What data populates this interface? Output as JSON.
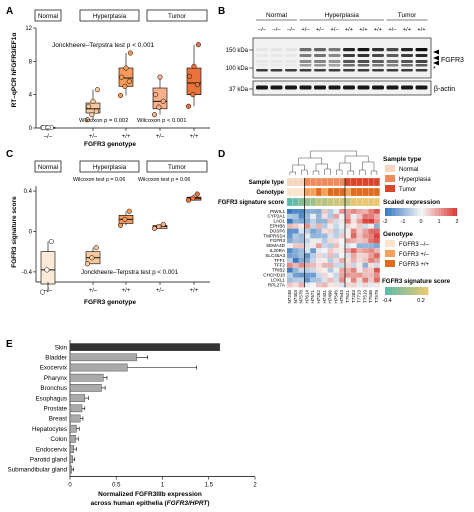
{
  "panels": {
    "A": {
      "letter": "A",
      "groups": [
        "Normal",
        "Hyperplasia",
        "Tumor"
      ],
      "ylabel": "RT–qPCR hFGFR3/EF1α",
      "xlabel": "FGFR3 genotype",
      "genotypes": [
        "–/–",
        "+/–",
        "+/+",
        "+/–",
        "+/+"
      ],
      "jt_test": "Jonckheere–Terpstra test p < 0.001",
      "wilcoxon_1": "Wilcoxon p = 0.002",
      "wilcoxon_2": "Wilcoxon p < 0.001"
    },
    "B": {
      "letter": "B",
      "groups": [
        "Normal",
        "Hyperplasia",
        "Tumor"
      ],
      "genotypes": [
        "–/–",
        "–/–",
        "–/–",
        "+/–",
        "+/–",
        "+/–",
        "+/+",
        "+/+",
        "+/+",
        "+/–",
        "+/+",
        "+/+"
      ],
      "mw_labels": [
        "150 kDa",
        "100 kDa",
        "37 kDa"
      ],
      "protein_labels": [
        "FGFR3",
        "β-actin"
      ]
    },
    "C": {
      "letter": "C",
      "groups": [
        "Normal",
        "Hyperplasia",
        "Tumor"
      ],
      "ylabel": "FGFR3 signature score",
      "xlabel": "FGFR3 genotype",
      "genotypes": [
        "–/–",
        "+/–",
        "+/+",
        "+/–",
        "+/+"
      ],
      "wilcoxon_1": "Wilcoxon test p = 0.06",
      "wilcoxon_2": "Wilcoxon test p = 0.06",
      "jt_test": "Jonckheere–Terpstra test p < 0.001"
    },
    "D": {
      "letter": "D",
      "track_labels": [
        "Sample type",
        "Genotype",
        "FGFR3 signature score"
      ],
      "genes": [
        "PIWIL1",
        "CYP2A1",
        "LAD1",
        "EPHB6",
        "DUSP6",
        "TMPRSS4",
        "FGFR3",
        "SEMA4D",
        "IL20RA",
        "SLC45A3",
        "TFF1",
        "TFF2",
        "TRIB2",
        "CHCHD10",
        "LOXL1",
        "RPL27A"
      ],
      "samples": [
        "N7248",
        "N7403",
        "N7578",
        "H7614",
        "H7671",
        "H7282",
        "H7431",
        "H7496",
        "H7545",
        "H7543",
        "T7521",
        "T7283",
        "T7713",
        "T7519",
        "T7538",
        "T7575"
      ],
      "legend": {
        "sample_type_title": "Sample type",
        "sample_types": [
          "Normal",
          "Hyperplasia",
          "Tumor"
        ],
        "scaled_title": "Scaled expression",
        "scaled_ticks": [
          "-2",
          "-1",
          "0",
          "1",
          "2"
        ],
        "genotype_title": "Genotype",
        "genotype_items": [
          "FGFR3 –/–",
          "FGFR3 +/–",
          "FGFR3 +/+"
        ],
        "score_title": "FGFR3 signature score",
        "score_ticks": [
          "-0.4",
          "0.2"
        ]
      },
      "colors": {
        "normal": "#f6d6c0",
        "hyperplasia": "#ef8a5c",
        "tumor": "#d9452b",
        "geno_neg": "#fbe3cc",
        "geno_het": "#f4a15a",
        "geno_hom": "#e16b1c"
      }
    },
    "E": {
      "letter": "E",
      "xlabel_line1": "Normalized FGFR3IIIb expression",
      "xlabel_line2_prefix": "across human epithelia (",
      "xlabel_line2_italic": "FGFR3/HPRT",
      "xlabel_line2_suffix": ")"
    }
  },
  "chart_data": [
    {
      "panel": "A",
      "type": "box+scatter",
      "categories": [
        "–/–",
        "+/–",
        "+/+",
        "+/–",
        "+/+"
      ],
      "group_of_category": [
        "Normal",
        "Hyperplasia",
        "Hyperplasia",
        "Tumor",
        "Tumor"
      ],
      "ylim": [
        0,
        12
      ],
      "yticks": [
        0,
        4,
        8,
        12
      ],
      "points": [
        [
          0.05,
          0.05,
          0.05,
          0.05,
          0.05
        ],
        [
          1.0,
          1.6,
          2.0,
          2.6,
          3.2,
          4.6
        ],
        [
          3.9,
          5.0,
          5.6,
          6.1,
          7.2,
          9.0
        ],
        [
          1.6,
          2.5,
          3.2,
          4.0,
          6.1
        ],
        [
          2.6,
          4.0,
          5.2,
          6.2,
          7.4,
          10.0
        ]
      ],
      "box": [
        {
          "q1": 0.05,
          "median": 0.05,
          "q3": 0.05
        },
        {
          "q1": 1.8,
          "median": 2.3,
          "q3": 3.0
        },
        {
          "q1": 5.0,
          "median": 6.0,
          "q3": 7.2
        },
        {
          "q1": 2.3,
          "median": 3.2,
          "q3": 4.8
        },
        {
          "q1": 4.0,
          "median": 5.4,
          "q3": 7.2
        }
      ]
    },
    {
      "panel": "C",
      "type": "box+scatter",
      "categories": [
        "–/–",
        "+/–",
        "+/+",
        "+/–",
        "+/+"
      ],
      "group_of_category": [
        "Normal",
        "Hyperplasia",
        "Hyperplasia",
        "Tumor",
        "Tumor"
      ],
      "ylim": [
        -0.5,
        0.45
      ],
      "yticks": [
        -0.4,
        0.0,
        0.4
      ],
      "points": [
        [
          -0.6,
          -0.38,
          -0.1
        ],
        [
          -0.32,
          -0.26,
          -0.16
        ],
        [
          0.06,
          0.12,
          0.2
        ],
        [
          0.03,
          0.05,
          0.07
        ],
        [
          0.31,
          0.33,
          0.37
        ]
      ],
      "box": [
        {
          "q1": -0.52,
          "median": -0.38,
          "q3": -0.2
        },
        {
          "q1": -0.32,
          "median": -0.26,
          "q3": -0.2
        },
        {
          "q1": 0.08,
          "median": 0.12,
          "q3": 0.16
        },
        {
          "q1": 0.03,
          "median": 0.05,
          "q3": 0.06
        },
        {
          "q1": 0.31,
          "median": 0.33,
          "q3": 0.34
        }
      ]
    },
    {
      "panel": "E",
      "type": "bar",
      "orientation": "horizontal",
      "categories": [
        "Skin",
        "Bladder",
        "Exocervix",
        "Pharynx",
        "Bronchus",
        "Esophagus",
        "Prostate",
        "Breast",
        "Hepatocytes",
        "Colon",
        "Endocervix",
        "Parotid gland",
        "Submandibular gland"
      ],
      "values": [
        1.62,
        0.72,
        0.62,
        0.36,
        0.34,
        0.16,
        0.13,
        0.11,
        0.07,
        0.06,
        0.04,
        0.03,
        0.02
      ],
      "errors": [
        0.0,
        0.12,
        0.75,
        0.04,
        0.04,
        0.04,
        0.03,
        0.03,
        0.03,
        0.03,
        0.03,
        0.02,
        0.02
      ],
      "xlim": [
        0,
        2.0
      ],
      "xticks": [
        0,
        0.5,
        1.0,
        1.5,
        2.0
      ],
      "highlight": "Skin"
    }
  ]
}
